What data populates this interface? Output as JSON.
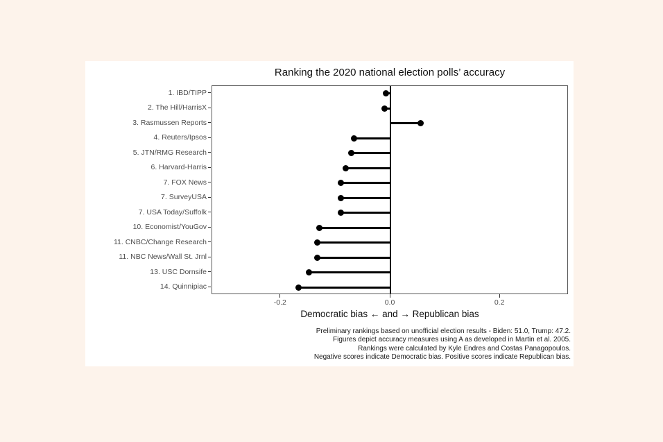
{
  "chart": {
    "title": "Ranking the 2020 national election polls’ accuracy",
    "xlabel": "Democratic bias ← and → Republican bias",
    "caption_lines": [
      "Preliminary rankings based on unofficial election results - Biden: 51.0, Trump: 47.2.",
      "Figures depict accuracy measures using A as developed in Martin et al. 2005.",
      "Rankings were calculated by Kyle Endres and Costas Panagopoulos.",
      "Negative scores indicate Democratic bias. Positive scores indicate Republican bias."
    ]
  },
  "chart_data": {
    "type": "bar",
    "style": "lollipop",
    "orientation": "horizontal",
    "title": "Ranking the 2020 national election polls’ accuracy",
    "xlabel": "Democratic bias ← and → Republican bias",
    "categories": [
      "1. IBD/TIPP",
      "2. The Hill/HarrisX",
      "3. Rasmussen Reports",
      "4. Reuters/Ipsos",
      "5. JTN/RMG Research",
      "6. Harvard-Harris",
      "7. FOX News",
      "7. SurveyUSA",
      "7. USA Today/Suffolk",
      "10. Economist/YouGov",
      "11. CNBC/Change Research",
      "11. NBC News/Wall St. Jrnl",
      "13. USC Dornsife",
      "14. Quinnipiac"
    ],
    "values": [
      -0.008,
      -0.011,
      0.055,
      -0.067,
      -0.071,
      -0.082,
      -0.09,
      -0.09,
      -0.09,
      -0.13,
      -0.134,
      -0.134,
      -0.148,
      -0.167
    ],
    "baseline": 0.0,
    "xlim": [
      -0.325,
      0.325
    ],
    "x_ticks": [
      -0.2,
      0.0,
      0.2
    ],
    "x_tick_labels": [
      "-0.2",
      "0.0",
      "0.2"
    ],
    "grid": false,
    "legend": "none",
    "colors": {
      "page_background": "#fdf3eb",
      "plot_background": "#ffffff",
      "point": "#000000",
      "stem": "#000000",
      "zero_line": "#000000",
      "panel_border": "#585858",
      "axis_text": "#4d4d4d",
      "title_text": "#111111"
    }
  }
}
